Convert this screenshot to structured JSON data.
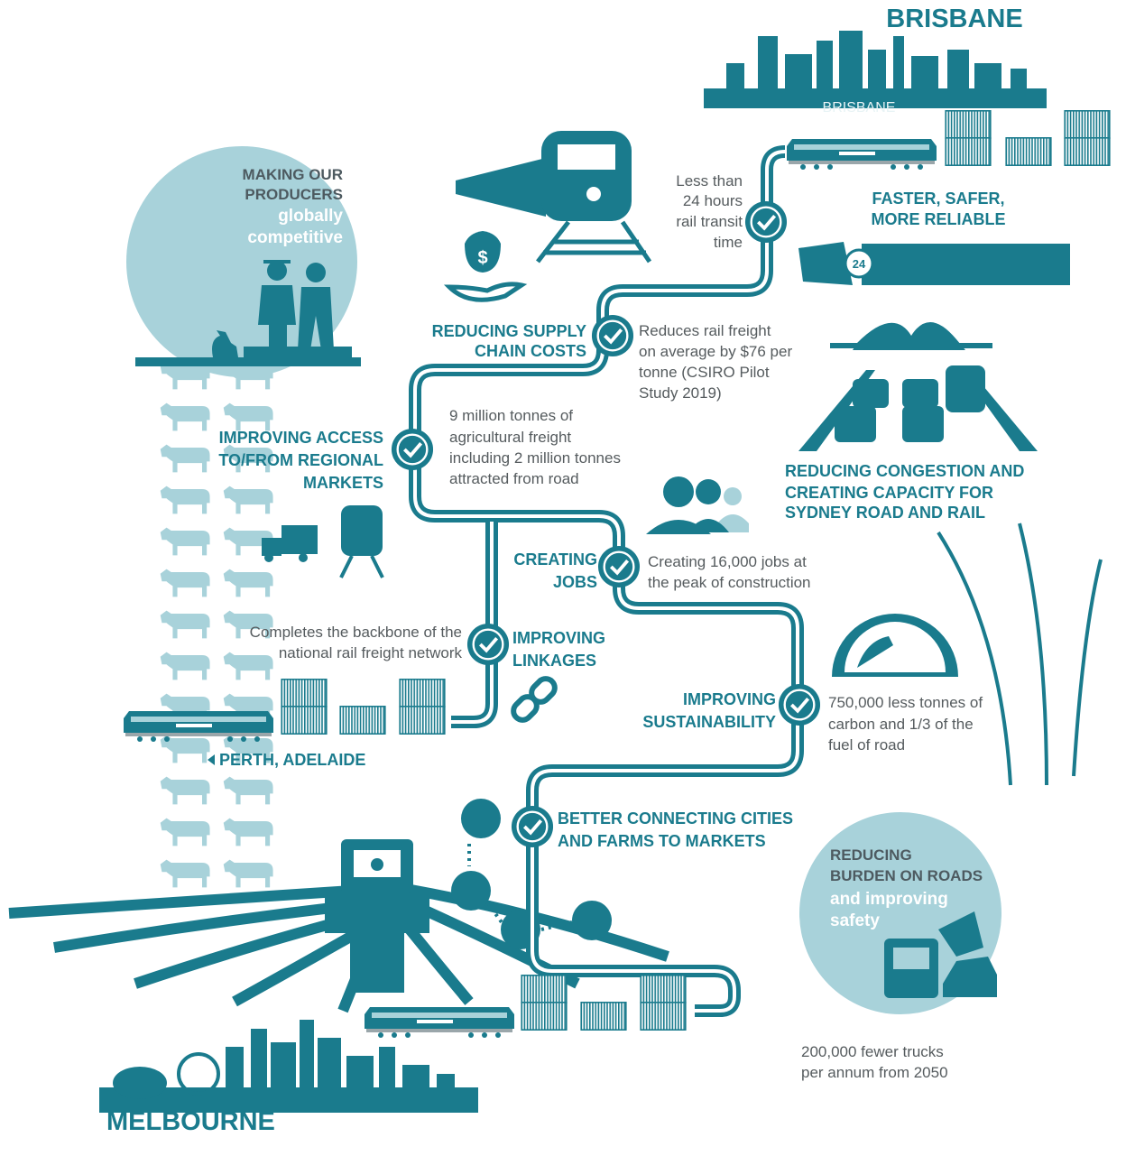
{
  "header": {
    "title": "BRISBANE",
    "skyline_label": "BRISBANE"
  },
  "footer": {
    "title": "MELBOURNE"
  },
  "destinations": {
    "west": "PERTH, ADELAIDE"
  },
  "producers": {
    "heading": [
      "MAKING OUR",
      "PRODUCERS"
    ],
    "highlight": [
      "globally",
      "competitive"
    ]
  },
  "transit": {
    "text": [
      "Less than",
      "24 hours",
      "rail transit",
      "time"
    ],
    "heading": [
      "FASTER, SAFER,",
      "MORE RELIABLE"
    ],
    "watch": "24"
  },
  "supply_chain": {
    "heading": [
      "REDUCING SUPPLY",
      "CHAIN COSTS"
    ],
    "text": [
      "Reduces rail freight",
      "on average by $76 per",
      "tonne (CSIRO Pilot",
      "Study 2019)"
    ],
    "icon": "$"
  },
  "regional_markets": {
    "heading": [
      "IMPROVING ACCESS",
      "TO/FROM REGIONAL",
      "MARKETS"
    ],
    "text": [
      "9 million tonnes of",
      "agricultural freight",
      "including 2 million tonnes",
      "attracted from road"
    ]
  },
  "congestion": {
    "heading": [
      "REDUCING CONGESTION AND",
      "CREATING CAPACITY FOR",
      "SYDNEY ROAD AND RAIL"
    ]
  },
  "jobs": {
    "heading": [
      "CREATING",
      "JOBS"
    ],
    "text": [
      "Creating 16,000 jobs at",
      "the peak of construction"
    ]
  },
  "linkages": {
    "text": [
      "Completes the backbone of the",
      "national rail freight network"
    ],
    "heading": [
      "IMPROVING",
      "LINKAGES"
    ]
  },
  "sustainability": {
    "heading": [
      "IMPROVING",
      "SUSTAINABILITY"
    ],
    "text": [
      "750,000 less tonnes of",
      "carbon and 1/3 of the",
      "fuel of road"
    ]
  },
  "connecting": {
    "heading": [
      "BETTER CONNECTING CITIES",
      "AND FARMS TO MARKETS"
    ]
  },
  "roads": {
    "heading": [
      "REDUCING",
      "BURDEN ON ROADS"
    ],
    "highlight": [
      "and improving",
      "safety"
    ],
    "text": [
      "200,000 fewer trucks",
      "per annum from 2050"
    ]
  }
}
